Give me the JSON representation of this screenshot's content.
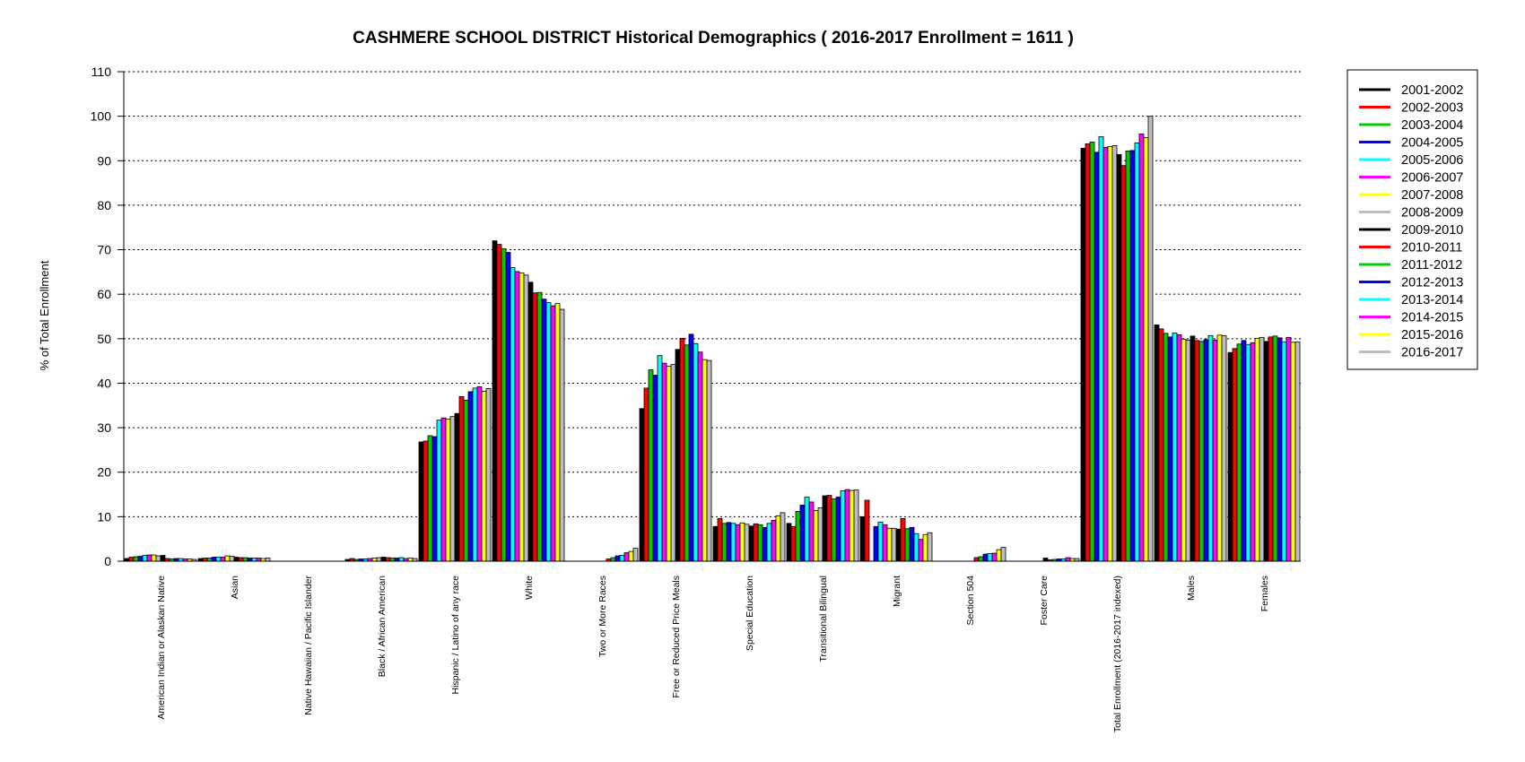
{
  "chart_data": {
    "type": "bar",
    "title": "CASHMERE SCHOOL DISTRICT Historical Demographics  ( 2016-2017 Enrollment =  1611 )",
    "ylabel": "% of Total Enrollment",
    "xlabel": "",
    "ylim": [
      0,
      110
    ],
    "yticks": [
      0,
      10,
      20,
      30,
      40,
      50,
      60,
      70,
      80,
      90,
      100,
      110
    ],
    "grid": true,
    "legend_position": "right",
    "categories": [
      "American Indian or Alaskan Native",
      "Asian",
      "Native Hawaiian / Pacific Islander",
      "Black / African American",
      "Hispanic / Latino of any race",
      "White",
      "Two or More Races",
      "Free or Reduced Price Meals",
      "Special Education",
      "Transitional Bilingual",
      "Migrant",
      "Section 504",
      "Foster Care",
      "Total Enrollment (2016-2017 indexed)",
      "Males",
      "Females"
    ],
    "series": [
      {
        "name": "2001-2002",
        "color": "#000000",
        "values": [
          0.6,
          0.6,
          0,
          0.4,
          26.8,
          72.0,
          0,
          34.3,
          7.8,
          8.5,
          10.0,
          0,
          0,
          92.8,
          53.1,
          46.9
        ]
      },
      {
        "name": "2002-2003",
        "color": "#ff0000",
        "values": [
          0.9,
          0.7,
          0,
          0.6,
          27.0,
          71.2,
          0,
          38.9,
          9.6,
          7.8,
          13.7,
          0,
          0,
          93.8,
          52.2,
          47.8
        ]
      },
      {
        "name": "2003-2004",
        "color": "#00cc00",
        "values": [
          1.0,
          0.7,
          0,
          0.4,
          28.2,
          70.2,
          0,
          43.0,
          8.5,
          11.2,
          0,
          0,
          0,
          94.2,
          51.2,
          48.8
        ]
      },
      {
        "name": "2004-2005",
        "color": "#0000ff",
        "values": [
          1.1,
          0.9,
          0,
          0.5,
          28.0,
          69.4,
          0,
          41.8,
          8.7,
          12.6,
          7.8,
          0,
          0,
          91.9,
          50.4,
          49.6
        ]
      },
      {
        "name": "2005-2006",
        "color": "#00ffff",
        "values": [
          1.3,
          0.9,
          0,
          0.5,
          31.7,
          66.0,
          0,
          46.2,
          8.5,
          14.4,
          8.8,
          0,
          0,
          95.4,
          51.3,
          48.7
        ]
      },
      {
        "name": "2006-2007",
        "color": "#ff00ff",
        "values": [
          1.4,
          0.9,
          0,
          0.6,
          32.2,
          65.1,
          0,
          44.5,
          8.2,
          13.3,
          8.2,
          0,
          0,
          93.0,
          50.9,
          49.1
        ]
      },
      {
        "name": "2007-2008",
        "color": "#ffff00",
        "values": [
          1.4,
          1.2,
          0,
          0.7,
          31.9,
          64.8,
          0,
          43.8,
          8.6,
          11.4,
          7.4,
          0,
          0,
          93.2,
          49.9,
          50.1
        ]
      },
      {
        "name": "2008-2009",
        "color": "#bebebe",
        "values": [
          1.2,
          1.1,
          0,
          0.8,
          32.5,
          64.3,
          0,
          44.2,
          8.3,
          12.0,
          7.4,
          0,
          0,
          93.4,
          49.7,
          50.3
        ]
      },
      {
        "name": "2009-2010",
        "color": "#000000",
        "values": [
          1.3,
          0.9,
          0,
          0.9,
          33.2,
          62.7,
          0,
          47.6,
          7.9,
          14.7,
          7.2,
          0,
          0.7,
          91.4,
          50.6,
          49.4
        ]
      },
      {
        "name": "2010-2011",
        "color": "#ff0000",
        "values": [
          0.6,
          0.8,
          0,
          0.8,
          37.0,
          60.3,
          0.5,
          50.1,
          8.4,
          14.8,
          9.6,
          0.8,
          0.3,
          88.9,
          49.6,
          50.4
        ]
      },
      {
        "name": "2011-2012",
        "color": "#00cc00",
        "values": [
          0.5,
          0.8,
          0,
          0.7,
          36.2,
          60.4,
          0.8,
          48.6,
          8.2,
          14.0,
          7.3,
          1.0,
          0.4,
          92.2,
          49.4,
          50.6
        ]
      },
      {
        "name": "2012-2013",
        "color": "#0000ff",
        "values": [
          0.6,
          0.7,
          0,
          0.7,
          38.1,
          58.9,
          1.2,
          51.0,
          7.6,
          14.4,
          7.6,
          1.6,
          0.5,
          92.3,
          49.8,
          50.2
        ]
      },
      {
        "name": "2013-2014",
        "color": "#00ffff",
        "values": [
          0.6,
          0.7,
          0,
          0.8,
          38.9,
          58.1,
          1.3,
          48.9,
          8.5,
          15.8,
          6.2,
          1.7,
          0.5,
          94.0,
          50.7,
          49.3
        ]
      },
      {
        "name": "2014-2015",
        "color": "#ff00ff",
        "values": [
          0.5,
          0.7,
          0,
          0.6,
          39.2,
          57.4,
          1.9,
          47.0,
          9.2,
          16.1,
          4.9,
          1.8,
          0.8,
          96.0,
          49.7,
          50.3
        ]
      },
      {
        "name": "2015-2016",
        "color": "#ffff00",
        "values": [
          0.5,
          0.6,
          0,
          0.7,
          38.2,
          57.9,
          2.2,
          45.3,
          10.2,
          15.9,
          6.0,
          2.6,
          0.6,
          95.2,
          50.8,
          49.2
        ]
      },
      {
        "name": "2016-2017",
        "color": "#bebebe",
        "values": [
          0.4,
          0.7,
          0,
          0.6,
          38.8,
          56.6,
          2.9,
          45.1,
          10.9,
          16.0,
          6.4,
          3.1,
          0.6,
          100.0,
          50.7,
          49.3
        ]
      }
    ]
  }
}
